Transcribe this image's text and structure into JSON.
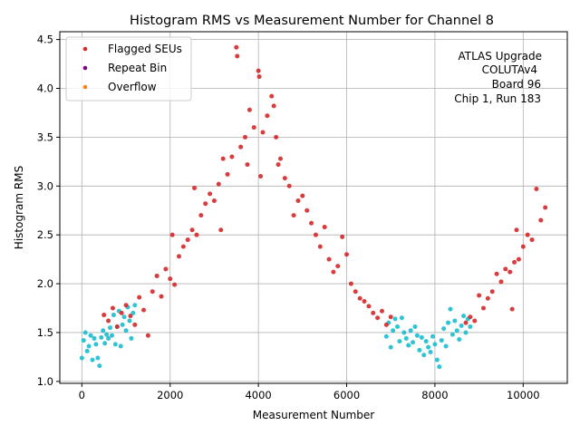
{
  "chart_data": {
    "type": "scatter",
    "title": "Histogram RMS vs Measurement Number for Channel 8",
    "xlabel": "Measurement Number",
    "ylabel": "Histogram RMS",
    "xlim": [
      -500,
      11000
    ],
    "ylim": [
      0.98,
      4.58
    ],
    "x_ticks": [
      0,
      2000,
      4000,
      6000,
      8000,
      10000
    ],
    "y_ticks": [
      1.0,
      1.5,
      2.0,
      2.5,
      3.0,
      3.5,
      4.0,
      4.5
    ],
    "grid": true,
    "legend_position": "top-left",
    "legend": [
      {
        "label": "Flagged SEUs",
        "color": "#d62728"
      },
      {
        "label": "Repeat Bin",
        "color": "#800080"
      },
      {
        "label": "Overflow",
        "color": "#ff7f0e"
      }
    ],
    "annotation": [
      "ATLAS Upgrade",
      "COLUTAv4",
      "Board 96",
      "Chip 1, Run 183"
    ],
    "series": [
      {
        "name": "",
        "color": "#17becf",
        "points": [
          [
            0,
            1.24
          ],
          [
            40,
            1.42
          ],
          [
            80,
            1.5
          ],
          [
            120,
            1.31
          ],
          [
            160,
            1.36
          ],
          [
            200,
            1.47
          ],
          [
            240,
            1.22
          ],
          [
            280,
            1.44
          ],
          [
            320,
            1.38
          ],
          [
            360,
            1.24
          ],
          [
            400,
            1.16
          ],
          [
            440,
            1.45
          ],
          [
            480,
            1.52
          ],
          [
            520,
            1.39
          ],
          [
            560,
            1.48
          ],
          [
            600,
            1.44
          ],
          [
            640,
            1.55
          ],
          [
            680,
            1.47
          ],
          [
            720,
            1.68
          ],
          [
            760,
            1.38
          ],
          [
            800,
            1.56
          ],
          [
            840,
            1.72
          ],
          [
            880,
            1.36
          ],
          [
            920,
            1.58
          ],
          [
            960,
            1.66
          ],
          [
            1000,
            1.52
          ],
          [
            1040,
            1.76
          ],
          [
            1080,
            1.62
          ],
          [
            1120,
            1.44
          ],
          [
            1160,
            1.7
          ],
          [
            1200,
            1.78
          ],
          [
            6900,
            1.46
          ],
          [
            6950,
            1.6
          ],
          [
            7000,
            1.35
          ],
          [
            7050,
            1.52
          ],
          [
            7100,
            1.64
          ],
          [
            7150,
            1.56
          ],
          [
            7200,
            1.41
          ],
          [
            7250,
            1.65
          ],
          [
            7300,
            1.5
          ],
          [
            7350,
            1.44
          ],
          [
            7400,
            1.37
          ],
          [
            7450,
            1.52
          ],
          [
            7500,
            1.4
          ],
          [
            7550,
            1.56
          ],
          [
            7600,
            1.47
          ],
          [
            7650,
            1.32
          ],
          [
            7700,
            1.45
          ],
          [
            7750,
            1.27
          ],
          [
            7800,
            1.41
          ],
          [
            7850,
            1.35
          ],
          [
            7900,
            1.3
          ],
          [
            7950,
            1.46
          ],
          [
            8000,
            1.38
          ],
          [
            8050,
            1.22
          ],
          [
            8100,
            1.15
          ],
          [
            8150,
            1.42
          ],
          [
            8200,
            1.54
          ],
          [
            8250,
            1.36
          ],
          [
            8300,
            1.6
          ],
          [
            8350,
            1.74
          ],
          [
            8400,
            1.48
          ],
          [
            8450,
            1.62
          ],
          [
            8500,
            1.52
          ],
          [
            8550,
            1.43
          ],
          [
            8600,
            1.57
          ],
          [
            8650,
            1.67
          ],
          [
            8700,
            1.5
          ],
          [
            8750,
            1.64
          ],
          [
            8800,
            1.56
          ]
        ]
      },
      {
        "name": "",
        "color": "#d62728",
        "points": [
          [
            500,
            1.68
          ],
          [
            600,
            1.62
          ],
          [
            700,
            1.75
          ],
          [
            800,
            1.56
          ],
          [
            900,
            1.7
          ],
          [
            1000,
            1.78
          ],
          [
            1100,
            1.67
          ],
          [
            1200,
            1.58
          ],
          [
            1300,
            1.86
          ],
          [
            1400,
            1.73
          ],
          [
            1500,
            1.47
          ],
          [
            1600,
            1.92
          ],
          [
            1700,
            2.08
          ],
          [
            1800,
            1.87
          ],
          [
            1900,
            2.15
          ],
          [
            2000,
            2.05
          ],
          [
            2050,
            2.5
          ],
          [
            2100,
            1.99
          ],
          [
            2200,
            2.28
          ],
          [
            2300,
            2.38
          ],
          [
            2400,
            2.45
          ],
          [
            2500,
            2.55
          ],
          [
            2550,
            2.98
          ],
          [
            2600,
            2.5
          ],
          [
            2700,
            2.7
          ],
          [
            2800,
            2.82
          ],
          [
            2900,
            2.92
          ],
          [
            3000,
            2.85
          ],
          [
            3100,
            3.02
          ],
          [
            3150,
            2.55
          ],
          [
            3200,
            3.28
          ],
          [
            3300,
            3.12
          ],
          [
            3400,
            3.3
          ],
          [
            3500,
            4.42
          ],
          [
            3520,
            4.33
          ],
          [
            3600,
            3.4
          ],
          [
            3700,
            3.5
          ],
          [
            3750,
            3.22
          ],
          [
            3800,
            3.78
          ],
          [
            3900,
            3.6
          ],
          [
            4000,
            4.18
          ],
          [
            4020,
            4.12
          ],
          [
            4050,
            3.1
          ],
          [
            4100,
            3.55
          ],
          [
            4200,
            3.72
          ],
          [
            4300,
            3.92
          ],
          [
            4350,
            3.82
          ],
          [
            4400,
            3.5
          ],
          [
            4450,
            3.22
          ],
          [
            4500,
            3.28
          ],
          [
            4600,
            3.08
          ],
          [
            4700,
            3.0
          ],
          [
            4800,
            2.7
          ],
          [
            4900,
            2.85
          ],
          [
            5000,
            2.9
          ],
          [
            5100,
            2.75
          ],
          [
            5200,
            2.62
          ],
          [
            5300,
            2.5
          ],
          [
            5400,
            2.38
          ],
          [
            5500,
            2.58
          ],
          [
            5600,
            2.25
          ],
          [
            5700,
            2.12
          ],
          [
            5800,
            2.18
          ],
          [
            5900,
            2.48
          ],
          [
            6000,
            2.3
          ],
          [
            6100,
            2.0
          ],
          [
            6200,
            1.92
          ],
          [
            6300,
            1.85
          ],
          [
            6400,
            1.82
          ],
          [
            6500,
            1.77
          ],
          [
            6600,
            1.7
          ],
          [
            6700,
            1.65
          ],
          [
            6800,
            1.72
          ],
          [
            6900,
            1.58
          ],
          [
            7000,
            1.66
          ],
          [
            8700,
            1.6
          ],
          [
            8800,
            1.66
          ],
          [
            8900,
            1.62
          ],
          [
            9000,
            1.88
          ],
          [
            9100,
            1.75
          ],
          [
            9200,
            1.85
          ],
          [
            9300,
            1.92
          ],
          [
            9400,
            2.1
          ],
          [
            9500,
            2.02
          ],
          [
            9600,
            2.15
          ],
          [
            9700,
            2.12
          ],
          [
            9750,
            1.74
          ],
          [
            9800,
            2.22
          ],
          [
            9850,
            2.55
          ],
          [
            9900,
            2.25
          ],
          [
            10000,
            2.38
          ],
          [
            10100,
            2.5
          ],
          [
            10200,
            2.45
          ],
          [
            10300,
            2.97
          ],
          [
            10400,
            2.65
          ],
          [
            10500,
            2.78
          ]
        ]
      }
    ]
  }
}
